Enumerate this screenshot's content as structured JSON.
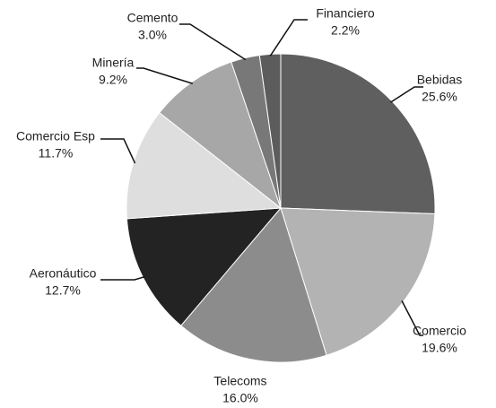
{
  "chart_data": {
    "type": "pie",
    "categories": [
      "Bebidas",
      "Comercio",
      "Telecoms",
      "Aeronáutico",
      "Comercio Esp",
      "Minería",
      "Cemento",
      "Financiero"
    ],
    "values": [
      25.6,
      19.6,
      16.0,
      12.7,
      11.7,
      9.2,
      3.0,
      2.2
    ],
    "value_labels": [
      "25.6%",
      "19.6%",
      "16.0%",
      "12.7%",
      "11.7%",
      "9.2%",
      "3.0%",
      "2.2%"
    ],
    "colors": [
      "#5f5f5f",
      "#b3b3b3",
      "#8c8c8c",
      "#232323",
      "#dedede",
      "#a7a7a7",
      "#787878",
      "#5c5c5c"
    ]
  }
}
